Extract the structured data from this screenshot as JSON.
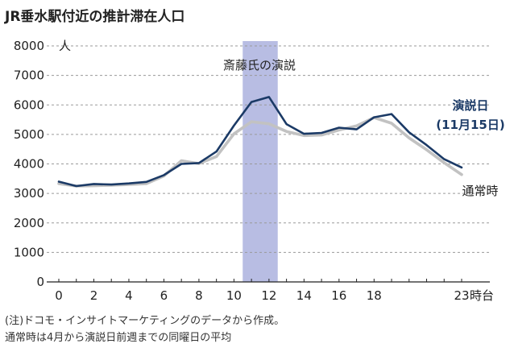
{
  "chart_data": {
    "type": "line",
    "title": "JR垂水駅付近の推計滞在人口",
    "unit": "人",
    "x_suffix": "時台",
    "x": [
      0,
      1,
      2,
      3,
      4,
      5,
      6,
      7,
      8,
      9,
      10,
      11,
      12,
      13,
      14,
      15,
      16,
      17,
      18,
      19,
      20,
      21,
      22,
      23
    ],
    "x_ticks": [
      0,
      2,
      4,
      6,
      8,
      10,
      12,
      14,
      16,
      18,
      23
    ],
    "ylim": [
      0,
      8000
    ],
    "y_ticks": [
      0,
      1000,
      2000,
      3000,
      4000,
      5000,
      6000,
      7000,
      8000
    ],
    "series": [
      {
        "name": "演説日",
        "date_label": "(11月15日)",
        "color": "#1b3a66",
        "values": [
          3400,
          3250,
          3320,
          3300,
          3340,
          3390,
          3620,
          4000,
          4030,
          4420,
          5300,
          6100,
          6270,
          5350,
          5020,
          5050,
          5230,
          5170,
          5580,
          5690,
          5070,
          4640,
          4160,
          3880
        ]
      },
      {
        "name": "通常時",
        "color": "#c2c2c2",
        "values": [
          3330,
          3250,
          3260,
          3280,
          3300,
          3330,
          3590,
          4110,
          4010,
          4250,
          5020,
          5430,
          5360,
          5100,
          4960,
          4980,
          5150,
          5290,
          5570,
          5380,
          4880,
          4480,
          4040,
          3640
        ]
      }
    ],
    "highlight": {
      "from": 10.5,
      "to": 12.5,
      "label": "斎藤氏の演説",
      "color": "#b8bde3"
    }
  },
  "notes": [
    "(注)ドコモ・インサイトマーケティングのデータから作成。",
    "通常時は4月から演説日前週までの同曜日の平均"
  ]
}
